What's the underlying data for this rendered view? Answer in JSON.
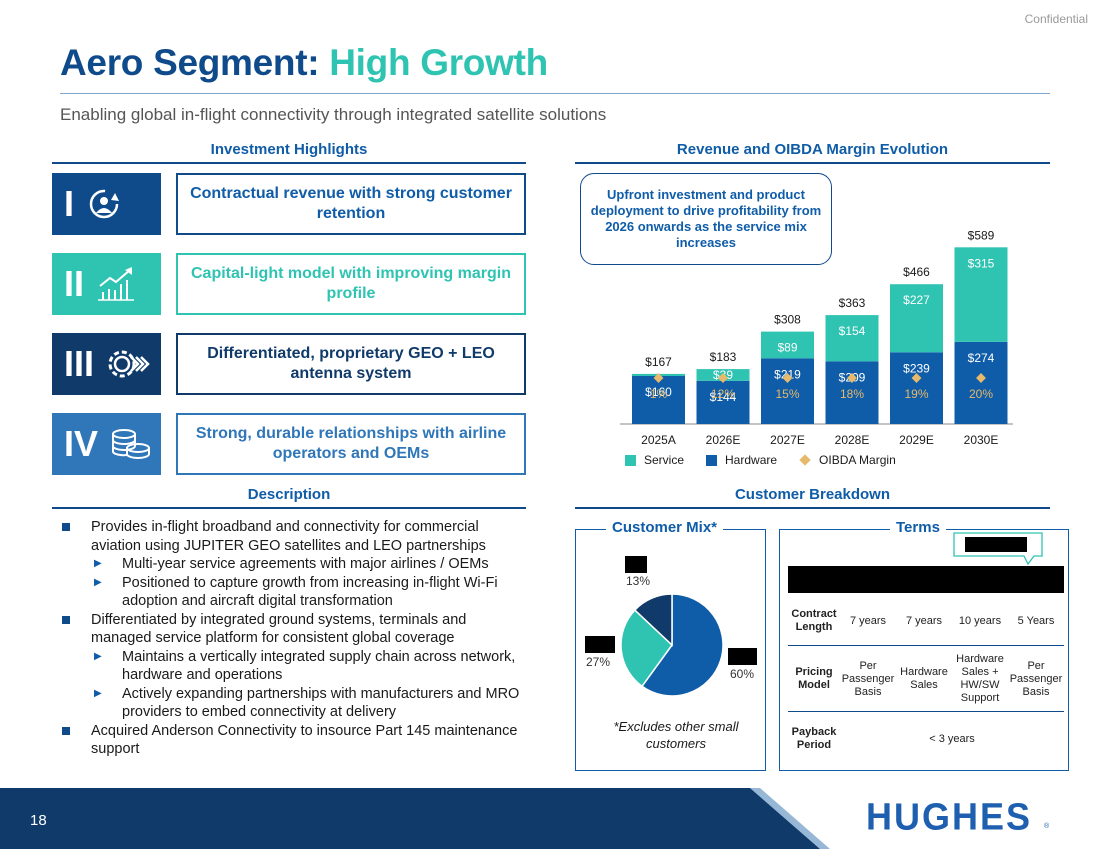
{
  "confidential": "Confidential",
  "title": {
    "main": "Aero Segment:",
    "accent": "High Growth"
  },
  "subtitle": "Enabling global in-flight connectivity through integrated satellite solutions",
  "sections": {
    "investment_highlights": "Investment Highlights",
    "revenue_chart": "Revenue and OIBDA Margin Evolution",
    "description": "Description",
    "customer_breakdown": "Customer Breakdown"
  },
  "highlights": [
    {
      "numeral": "I",
      "icon": "user-retention-icon",
      "text": "Contractual revenue with strong customer retention",
      "badge_color": "#0f4a8a",
      "border_color": "#0f4a8a",
      "text_color": "#0f5ca8"
    },
    {
      "numeral": "II",
      "icon": "growth-chart-icon",
      "text": "Capital-light model with improving margin profile",
      "badge_color": "#2fc3b2",
      "border_color": "#2fc3b2",
      "text_color": "#2fc3b2"
    },
    {
      "numeral": "III",
      "icon": "gear-speed-icon",
      "text": "Differentiated, proprietary GEO + LEO antenna system",
      "badge_color": "#0f3a6a",
      "border_color": "#0f3a6a",
      "text_color": "#0f3a6a"
    },
    {
      "numeral": "IV",
      "icon": "coins-icon",
      "text": "Strong, durable relationships with airline operators and OEMs",
      "badge_color": "#2f77b8",
      "border_color": "#2f77b8",
      "text_color": "#2f77b8"
    }
  ],
  "description": [
    {
      "level": 1,
      "text": "Provides in-flight broadband and connectivity for commercial aviation using JUPITER GEO satellites and LEO partnerships"
    },
    {
      "level": 2,
      "text": "Multi-year service agreements with major airlines / OEMs"
    },
    {
      "level": 2,
      "text": "Positioned to capture growth from increasing in-flight Wi-Fi adoption and aircraft digital transformation"
    },
    {
      "level": 1,
      "text": "Differentiated by integrated ground systems, terminals and managed service platform for consistent global coverage"
    },
    {
      "level": 2,
      "text": "Maintains a vertically integrated supply chain across network, hardware and operations"
    },
    {
      "level": 2,
      "text": "Actively expanding partnerships with manufacturers and MRO providers to embed connectivity at delivery"
    },
    {
      "level": 1,
      "text": "Acquired Anderson Connectivity to insource Part 145 maintenance support"
    }
  ],
  "callout": "Upfront investment and product deployment to drive profitability from 2026 onwards as the service mix increases",
  "chart_data": {
    "type": "bar",
    "stacked": true,
    "title": "Revenue and OIBDA Margin Evolution",
    "categories": [
      "2025A",
      "2026E",
      "2027E",
      "2028E",
      "2029E",
      "2030E"
    ],
    "series": [
      {
        "name": "Hardware",
        "values": [
          160,
          144,
          219,
          209,
          239,
          274
        ],
        "labels": [
          "$160",
          "$144",
          "$219",
          "$209",
          "$239",
          "$274"
        ],
        "color": "#0f5ca8"
      },
      {
        "name": "Service",
        "values": [
          7,
          39,
          89,
          154,
          227,
          315
        ],
        "labels": [
          "",
          "$39",
          "$89",
          "$154",
          "$227",
          "$315"
        ],
        "color": "#2fc3b2"
      }
    ],
    "totals": [
      167,
      183,
      308,
      363,
      466,
      589
    ],
    "total_labels": [
      "$167",
      "$183",
      "$308",
      "$363",
      "$466",
      "$589"
    ],
    "oibda_margin": {
      "name": "OIBDA Margin",
      "values": [
        1,
        12,
        15,
        18,
        19,
        20
      ],
      "labels": [
        "1%",
        "12%",
        "15%",
        "18%",
        "19%",
        "20%"
      ],
      "color": "#e6b96b"
    },
    "legend": [
      "Service",
      "Hardware",
      "OIBDA Margin"
    ],
    "legend_placement": "bottom",
    "grid": false
  },
  "customer_mix": {
    "title": "Customer Mix*",
    "slices": [
      {
        "value": 60,
        "label": "60%",
        "color": "#0f5ca8"
      },
      {
        "value": 27,
        "label": "27%",
        "color": "#2fc3b2"
      },
      {
        "value": 13,
        "label": "13%",
        "color": "#0f3a6a"
      }
    ],
    "note": "*Excludes other small customers"
  },
  "terms": {
    "title": "Terms",
    "rows": [
      {
        "header": "Contract Length",
        "values": [
          "7 years",
          "7 years",
          "10 years",
          "5 Years"
        ]
      },
      {
        "header": "Pricing Model",
        "values": [
          "Per Passenger Basis",
          "Hardware Sales",
          "Hardware Sales + HW/SW Support",
          "Per Passenger Basis"
        ]
      },
      {
        "header": "Payback Period",
        "value": "< 3 years"
      }
    ]
  },
  "footer": {
    "page_number": "18",
    "logo": "HUGHES",
    "logo_mark": "®"
  },
  "colors": {
    "navy": "#0f4a8a",
    "teal": "#2fc3b2",
    "dark_navy": "#0f3a6a",
    "mid_blue": "#2f77b8",
    "gold": "#e6b96b"
  }
}
